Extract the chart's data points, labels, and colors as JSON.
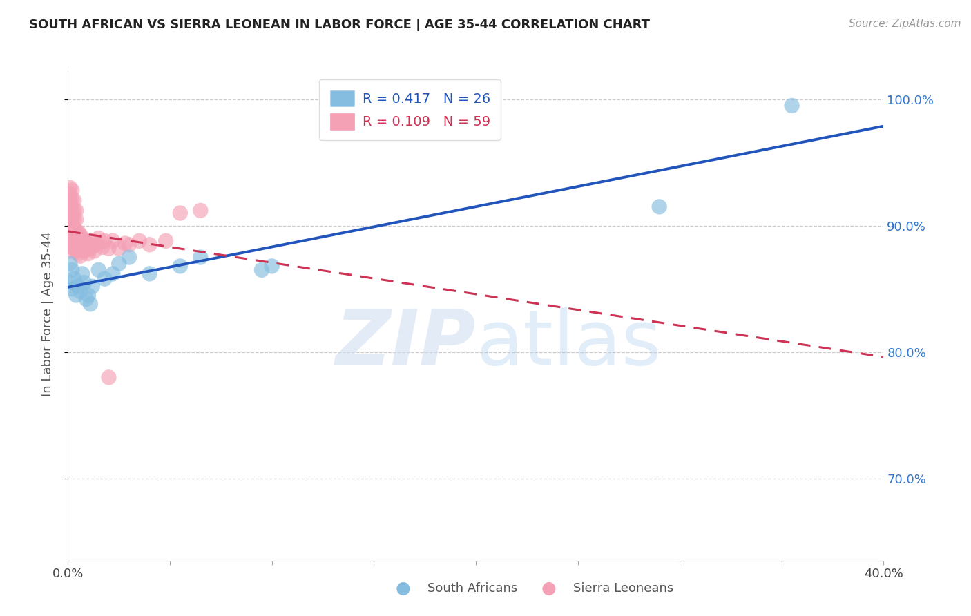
{
  "title": "SOUTH AFRICAN VS SIERRA LEONEAN IN LABOR FORCE | AGE 35-44 CORRELATION CHART",
  "source": "Source: ZipAtlas.com",
  "ylabel": "In Labor Force | Age 35-44",
  "legend_label_blue": "South Africans",
  "legend_label_pink": "Sierra Leoneans",
  "R_blue": 0.417,
  "N_blue": 26,
  "R_pink": 0.109,
  "N_pink": 59,
  "xlim": [
    0.0,
    0.4
  ],
  "ylim": [
    0.635,
    1.025
  ],
  "yticks": [
    0.7,
    0.8,
    0.9,
    1.0
  ],
  "xticks_show": [
    0.0,
    0.4
  ],
  "color_blue": "#85bde0",
  "color_pink": "#f4a0b5",
  "trendline_blue": "#2255bb",
  "trendline_pink": "#cc3355",
  "blue_x": [
    0.001,
    0.001,
    0.002,
    0.002,
    0.003,
    0.004,
    0.005,
    0.006,
    0.007,
    0.008,
    0.009,
    0.01,
    0.011,
    0.012,
    0.015,
    0.018,
    0.022,
    0.025,
    0.03,
    0.04,
    0.055,
    0.065,
    0.095,
    0.1,
    0.29,
    0.355
  ],
  "blue_y": [
    0.87,
    0.855,
    0.865,
    0.85,
    0.858,
    0.845,
    0.852,
    0.848,
    0.862,
    0.855,
    0.842,
    0.845,
    0.838,
    0.852,
    0.865,
    0.858,
    0.862,
    0.87,
    0.875,
    0.862,
    0.868,
    0.875,
    0.865,
    0.868,
    0.915,
    0.995
  ],
  "pink_x": [
    0.001,
    0.001,
    0.001,
    0.001,
    0.001,
    0.001,
    0.001,
    0.001,
    0.001,
    0.001,
    0.002,
    0.002,
    0.002,
    0.002,
    0.002,
    0.002,
    0.002,
    0.003,
    0.003,
    0.003,
    0.003,
    0.003,
    0.003,
    0.004,
    0.004,
    0.004,
    0.004,
    0.004,
    0.005,
    0.005,
    0.005,
    0.006,
    0.006,
    0.006,
    0.007,
    0.007,
    0.008,
    0.008,
    0.009,
    0.01,
    0.01,
    0.011,
    0.012,
    0.013,
    0.014,
    0.015,
    0.017,
    0.018,
    0.02,
    0.022,
    0.025,
    0.028,
    0.03,
    0.035,
    0.04,
    0.048,
    0.055,
    0.065,
    0.02
  ],
  "pink_y": [
    0.88,
    0.888,
    0.895,
    0.9,
    0.905,
    0.91,
    0.915,
    0.92,
    0.925,
    0.93,
    0.885,
    0.892,
    0.898,
    0.905,
    0.912,
    0.92,
    0.928,
    0.882,
    0.89,
    0.898,
    0.905,
    0.912,
    0.92,
    0.88,
    0.888,
    0.896,
    0.905,
    0.912,
    0.878,
    0.886,
    0.895,
    0.876,
    0.885,
    0.893,
    0.882,
    0.89,
    0.88,
    0.888,
    0.885,
    0.878,
    0.886,
    0.882,
    0.888,
    0.88,
    0.885,
    0.89,
    0.883,
    0.888,
    0.882,
    0.888,
    0.882,
    0.886,
    0.885,
    0.888,
    0.885,
    0.888,
    0.91,
    0.912,
    0.78
  ]
}
